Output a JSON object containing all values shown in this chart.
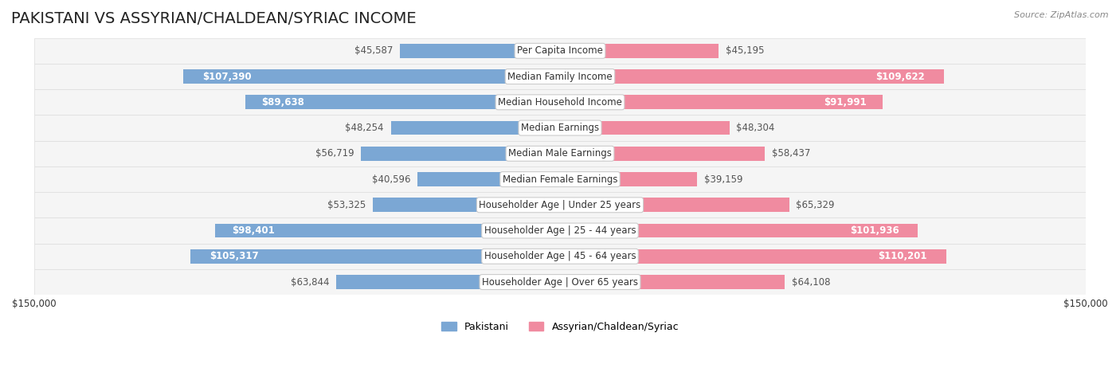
{
  "title": "PAKISTANI VS ASSYRIAN/CHALDEAN/SYRIAC INCOME",
  "source": "Source: ZipAtlas.com",
  "categories": [
    "Per Capita Income",
    "Median Family Income",
    "Median Household Income",
    "Median Earnings",
    "Median Male Earnings",
    "Median Female Earnings",
    "Householder Age | Under 25 years",
    "Householder Age | 25 - 44 years",
    "Householder Age | 45 - 64 years",
    "Householder Age | Over 65 years"
  ],
  "pakistani_values": [
    45587,
    107390,
    89638,
    48254,
    56719,
    40596,
    53325,
    98401,
    105317,
    63844
  ],
  "assyrian_values": [
    45195,
    109622,
    91991,
    48304,
    58437,
    39159,
    65329,
    101936,
    110201,
    64108
  ],
  "pakistani_labels": [
    "$45,587",
    "$107,390",
    "$89,638",
    "$48,254",
    "$56,719",
    "$40,596",
    "$53,325",
    "$98,401",
    "$105,317",
    "$63,844"
  ],
  "assyrian_labels": [
    "$45,195",
    "$109,622",
    "$91,991",
    "$48,304",
    "$58,437",
    "$39,159",
    "$65,329",
    "$101,936",
    "$110,201",
    "$64,108"
  ],
  "pakistani_color": "#7BA7D4",
  "pakistani_color_dark": "#5B8DB8",
  "assyrian_color": "#F08BA0",
  "assyrian_color_dark": "#E06080",
  "label_color_inside": "#ffffff",
  "label_color_outside": "#555555",
  "max_value": 150000,
  "bar_height": 0.55,
  "row_bg_color": "#f0f0f0",
  "row_bg_color_alt": "#e8e8e8",
  "background_color": "#ffffff",
  "title_fontsize": 14,
  "label_fontsize": 8.5,
  "category_fontsize": 8.5,
  "legend_fontsize": 9,
  "source_fontsize": 8
}
